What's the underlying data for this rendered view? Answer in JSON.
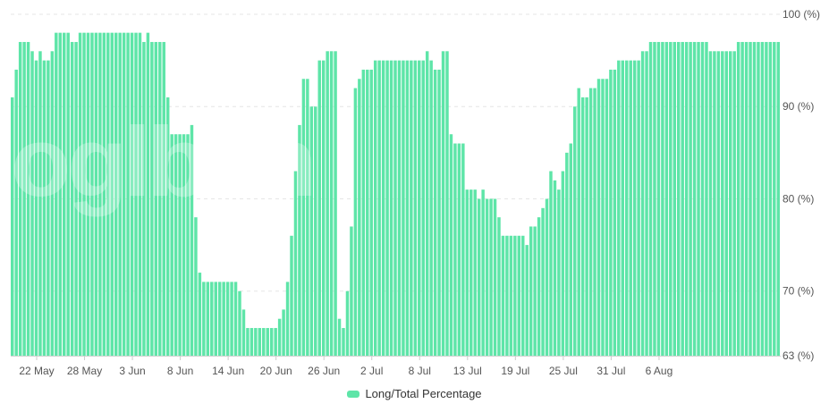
{
  "colors": {
    "bar": "#5ee5a8",
    "grid": "#e6e6e6",
    "axis": "#555555"
  },
  "watermark": "coinglass",
  "legend": {
    "label": "Long/Total Percentage",
    "icon": "rounded-rect-swatch"
  },
  "chart_data": {
    "type": "bar",
    "title": "",
    "xlabel": "",
    "ylabel": "",
    "ylim": [
      63,
      100
    ],
    "y_ticks": [
      {
        "value": 100,
        "label": "100 (%)"
      },
      {
        "value": 90,
        "label": "90 (%)"
      },
      {
        "value": 80,
        "label": "80 (%)"
      },
      {
        "value": 70,
        "label": "70 (%)"
      },
      {
        "value": 63,
        "label": "63 (%)"
      }
    ],
    "x_ticks": [
      {
        "index": 6,
        "label": "22 May"
      },
      {
        "index": 18,
        "label": "28 May"
      },
      {
        "index": 30,
        "label": "3 Jun"
      },
      {
        "index": 42,
        "label": "8 Jun"
      },
      {
        "index": 54,
        "label": "14 Jun"
      },
      {
        "index": 66,
        "label": "20 Jun"
      },
      {
        "index": 78,
        "label": "26 Jun"
      },
      {
        "index": 90,
        "label": "2 Jul"
      },
      {
        "index": 102,
        "label": "8 Jul"
      },
      {
        "index": 114,
        "label": "13 Jul"
      },
      {
        "index": 126,
        "label": "19 Jul"
      },
      {
        "index": 138,
        "label": "25 Jul"
      },
      {
        "index": 150,
        "label": "31 Jul"
      },
      {
        "index": 162,
        "label": "6 Aug"
      }
    ],
    "grid": true,
    "legend_position": "bottom-center",
    "series": [
      {
        "name": "Long/Total Percentage",
        "values": [
          91,
          94,
          97,
          97,
          97,
          96,
          95,
          96,
          95,
          95,
          96,
          98,
          98,
          98,
          98,
          97,
          97,
          98,
          98,
          98,
          98,
          98,
          98,
          98,
          98,
          98,
          98,
          98,
          98,
          98,
          98,
          98,
          98,
          97,
          98,
          97,
          97,
          97,
          97,
          91,
          87,
          87,
          87,
          87,
          87,
          88,
          78,
          72,
          71,
          71,
          71,
          71,
          71,
          71,
          71,
          71,
          71,
          70,
          68,
          66,
          66,
          66,
          66,
          66,
          66,
          66,
          66,
          67,
          68,
          71,
          76,
          83,
          88,
          93,
          93,
          90,
          90,
          95,
          95,
          96,
          96,
          96,
          67,
          66,
          70,
          77,
          92,
          93,
          94,
          94,
          94,
          95,
          95,
          95,
          95,
          95,
          95,
          95,
          95,
          95,
          95,
          95,
          95,
          95,
          96,
          95,
          94,
          94,
          96,
          96,
          87,
          86,
          86,
          86,
          81,
          81,
          81,
          80,
          81,
          80,
          80,
          80,
          78,
          76,
          76,
          76,
          76,
          76,
          76,
          75,
          77,
          77,
          78,
          79,
          80,
          83,
          82,
          81,
          83,
          85,
          86,
          90,
          92,
          91,
          91,
          92,
          92,
          93,
          93,
          93,
          94,
          94,
          95,
          95,
          95,
          95,
          95,
          95,
          96,
          96,
          97,
          97,
          97,
          97,
          97,
          97,
          97,
          97,
          97,
          97,
          97,
          97,
          97,
          97,
          97,
          96,
          96,
          96,
          96,
          96,
          96,
          96,
          97,
          97,
          97,
          97,
          97,
          97,
          97,
          97,
          97,
          97,
          97
        ]
      }
    ]
  }
}
